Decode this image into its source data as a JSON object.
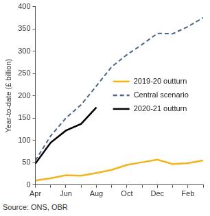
{
  "chart_data": {
    "type": "line",
    "y_label": "Year-to-date (£ billion)",
    "source": "Source: ONS, OBR",
    "categories": [
      "Apr",
      null,
      "Jun",
      null,
      "Aug",
      null,
      "Oct",
      null,
      "Dec",
      null,
      "Feb",
      null
    ],
    "series": [
      {
        "name": "2019-20 outturn",
        "color": "#f2b31b",
        "line_style": "solid",
        "values": [
          10,
          15,
          22,
          21,
          27,
          34,
          45,
          51,
          57,
          47,
          49,
          55
        ]
      },
      {
        "name": "Central scenario",
        "color": "#4a6686",
        "line_style": "dashed",
        "values": [
          55,
          110,
          150,
          180,
          222,
          265,
          292,
          315,
          340,
          339,
          355,
          375
        ]
      },
      {
        "name": "2020-21 outturn",
        "color": "#000000",
        "line_style": "solid",
        "values": [
          48,
          95,
          122,
          137,
          174,
          null,
          null,
          null,
          null,
          null,
          null,
          null
        ]
      }
    ],
    "ylim": [
      0,
      400
    ],
    "yticks": [
      0,
      50,
      100,
      150,
      200,
      250,
      300,
      350,
      400
    ],
    "grid": false,
    "legend": "right"
  }
}
